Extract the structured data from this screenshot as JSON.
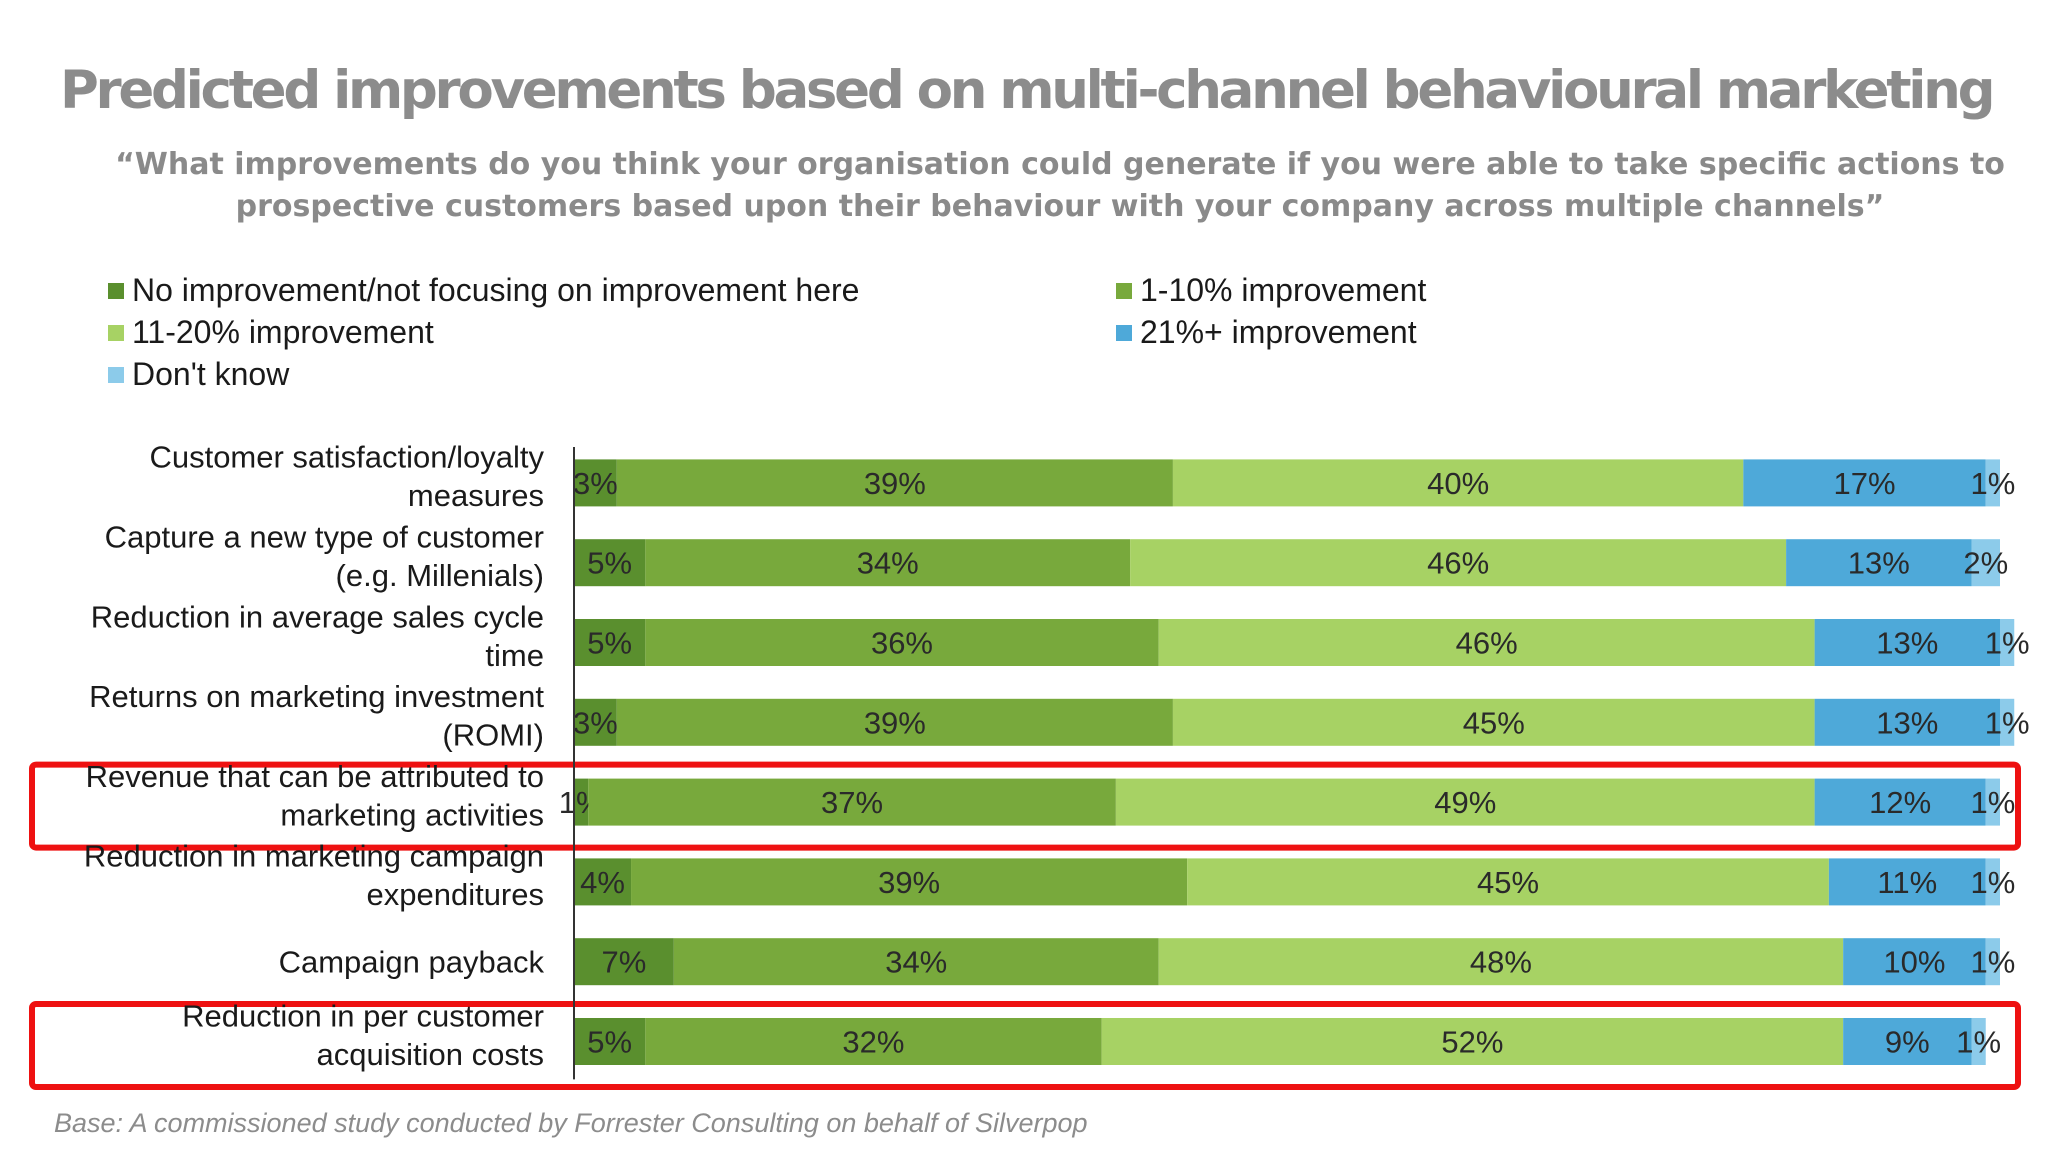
{
  "title": "Predicted improvements based on multi-channel behavioural marketing",
  "subtitle": "“What improvements do you think your organisation could generate if you were able to take specific actions to prospective customers based upon their behaviour with your company across multiple channels”",
  "footnote": "Base: A commissioned study conducted by Forrester Consulting on behalf of Silverpop",
  "colors": {
    "no_improvement": "#5a8f2e",
    "improve_1_10": "#78a93c",
    "improve_11_20": "#a7d264",
    "improve_21_plus": "#4ea9d9",
    "dont_know": "#8ccbea",
    "highlight": "#ee1111"
  },
  "chart_data": {
    "type": "bar",
    "orientation": "horizontal",
    "stacked": true,
    "legend": "top",
    "categories": [
      "Customer satisfaction/loyalty measures",
      "Capture a new type of customer (e.g. Millenials)",
      "Reduction in average sales cycle time",
      "Returns on marketing investment (ROMI)",
      "Revenue that can be attributed to marketing activities",
      "Reduction in marketing campaign expenditures",
      "Campaign payback",
      "Reduction in per customer acquisition costs"
    ],
    "series": [
      {
        "name": "No improvement/not focusing on improvement here",
        "values": [
          3,
          5,
          5,
          3,
          1,
          4,
          7,
          5
        ]
      },
      {
        "name": "1-10% improvement",
        "values": [
          39,
          34,
          36,
          39,
          37,
          39,
          34,
          32
        ]
      },
      {
        "name": "11-20% improvement",
        "values": [
          40,
          46,
          46,
          45,
          49,
          45,
          48,
          52
        ]
      },
      {
        "name": "21%+ improvement",
        "values": [
          17,
          13,
          13,
          13,
          12,
          11,
          10,
          9
        ]
      },
      {
        "name": "Don't know",
        "values": [
          1,
          2,
          1,
          1,
          1,
          1,
          1,
          1
        ]
      }
    ],
    "highlighted_categories": [
      "Revenue that can be attributed to marketing activities",
      "Reduction in per customer acquisition costs"
    ]
  }
}
